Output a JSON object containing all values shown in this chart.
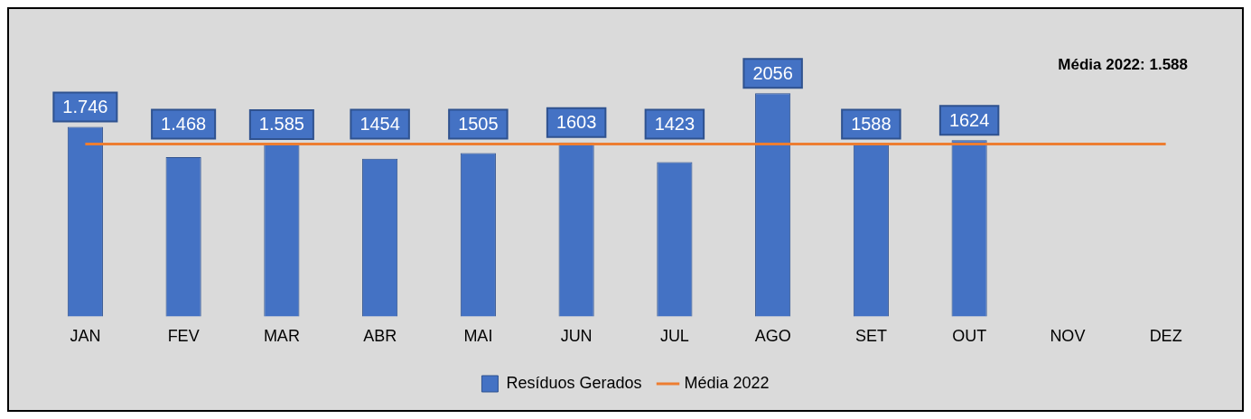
{
  "chart_data": {
    "type": "bar",
    "categories": [
      "JAN",
      "FEV",
      "MAR",
      "ABR",
      "MAI",
      "JUN",
      "JUL",
      "AGO",
      "SET",
      "OUT",
      "NOV",
      "DEZ"
    ],
    "series": [
      {
        "name": "Resíduos Gerados",
        "color": "#4472c4",
        "values": [
          1746,
          1468,
          1585,
          1454,
          1505,
          1603,
          1423,
          2056,
          1588,
          1624,
          null,
          null
        ],
        "value_labels": [
          "1.746",
          "1.468",
          "1.585",
          "1454",
          "1505",
          "1603",
          "1423",
          "2056",
          "1588",
          "1624",
          null,
          null
        ]
      },
      {
        "name": "Média 2022",
        "type": "line",
        "color": "#ed7d31",
        "marker": "none",
        "values": [
          1588,
          1588,
          1588,
          1588,
          1588,
          1588,
          1588,
          1588,
          1588,
          1588,
          1588,
          1588
        ]
      }
    ],
    "annotations": [
      "Média 2022: 1.588"
    ],
    "legend": "bottom",
    "grid": false
  }
}
